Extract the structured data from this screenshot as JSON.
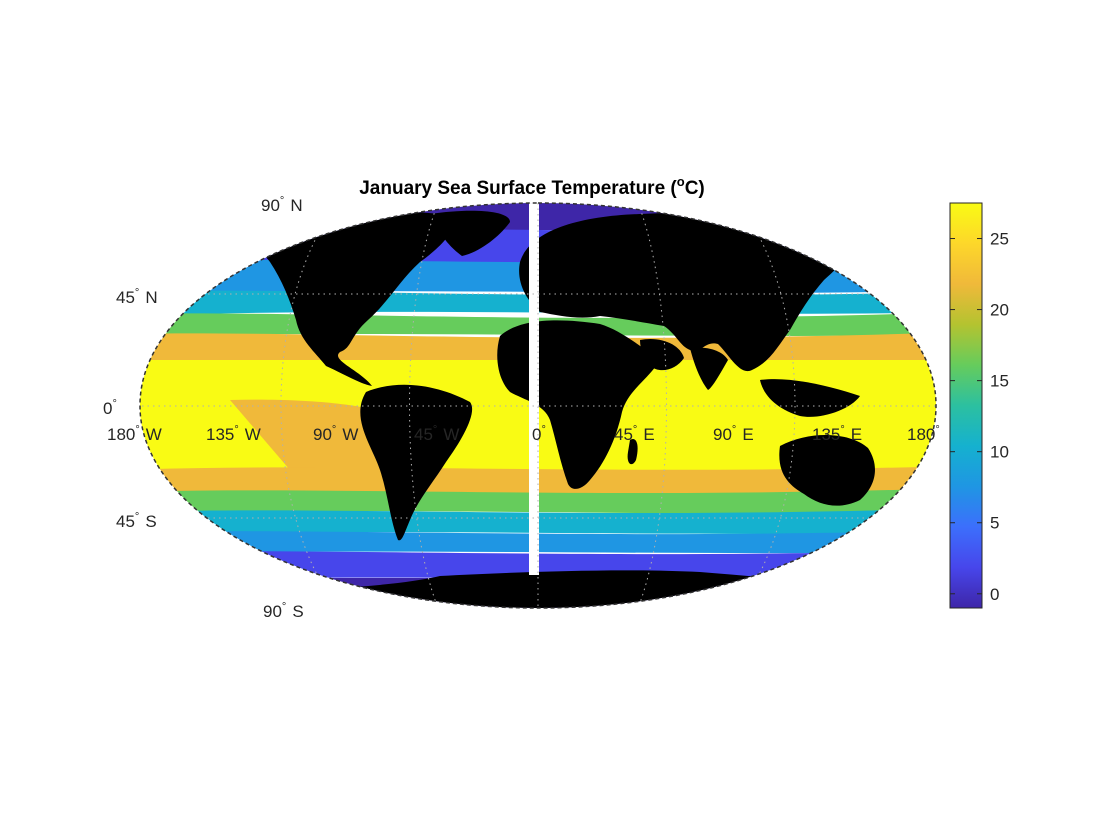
{
  "figure": {
    "title_main": "January Sea Surface Temperature (",
    "title_sup": "o",
    "title_end": "C)"
  },
  "map": {
    "projection": "robinson-like (elliptical)",
    "ocean_colormap": "parula",
    "land_color": "#000000",
    "sea_ice_color": "#ffffff",
    "graticule_style": "dotted",
    "lat_labels": [
      {
        "value": 90,
        "text": "90",
        "hemi": "N"
      },
      {
        "value": 45,
        "text": "45",
        "hemi": "N"
      },
      {
        "value": 0,
        "text": "0",
        "hemi": ""
      },
      {
        "value": -45,
        "text": "45",
        "hemi": "S"
      },
      {
        "value": -90,
        "text": "90",
        "hemi": "S"
      }
    ],
    "lon_labels": [
      {
        "value": -180,
        "text": "180",
        "hemi": "W"
      },
      {
        "value": -135,
        "text": "135",
        "hemi": "W"
      },
      {
        "value": -90,
        "text": "90",
        "hemi": "W"
      },
      {
        "value": -45,
        "text": "45",
        "hemi": "W"
      },
      {
        "value": 0,
        "text": "0",
        "hemi": ""
      },
      {
        "value": 45,
        "text": "45",
        "hemi": "E"
      },
      {
        "value": 90,
        "text": "90",
        "hemi": "E"
      },
      {
        "value": 135,
        "text": "135",
        "hemi": "E"
      },
      {
        "value": 180,
        "text": "180",
        "hemi": ""
      }
    ],
    "degree_mark": "°"
  },
  "colorbar": {
    "min": -1,
    "max": 27.5,
    "ticks": [
      0,
      5,
      10,
      15,
      20,
      25
    ],
    "stops": [
      "#3e26a8",
      "#4746eb",
      "#3c6ffc",
      "#1f96e3",
      "#15b1cf",
      "#2cc0a0",
      "#66cc5c",
      "#b4c330",
      "#f0b93a",
      "#fdd72a",
      "#f9fb14"
    ]
  }
}
